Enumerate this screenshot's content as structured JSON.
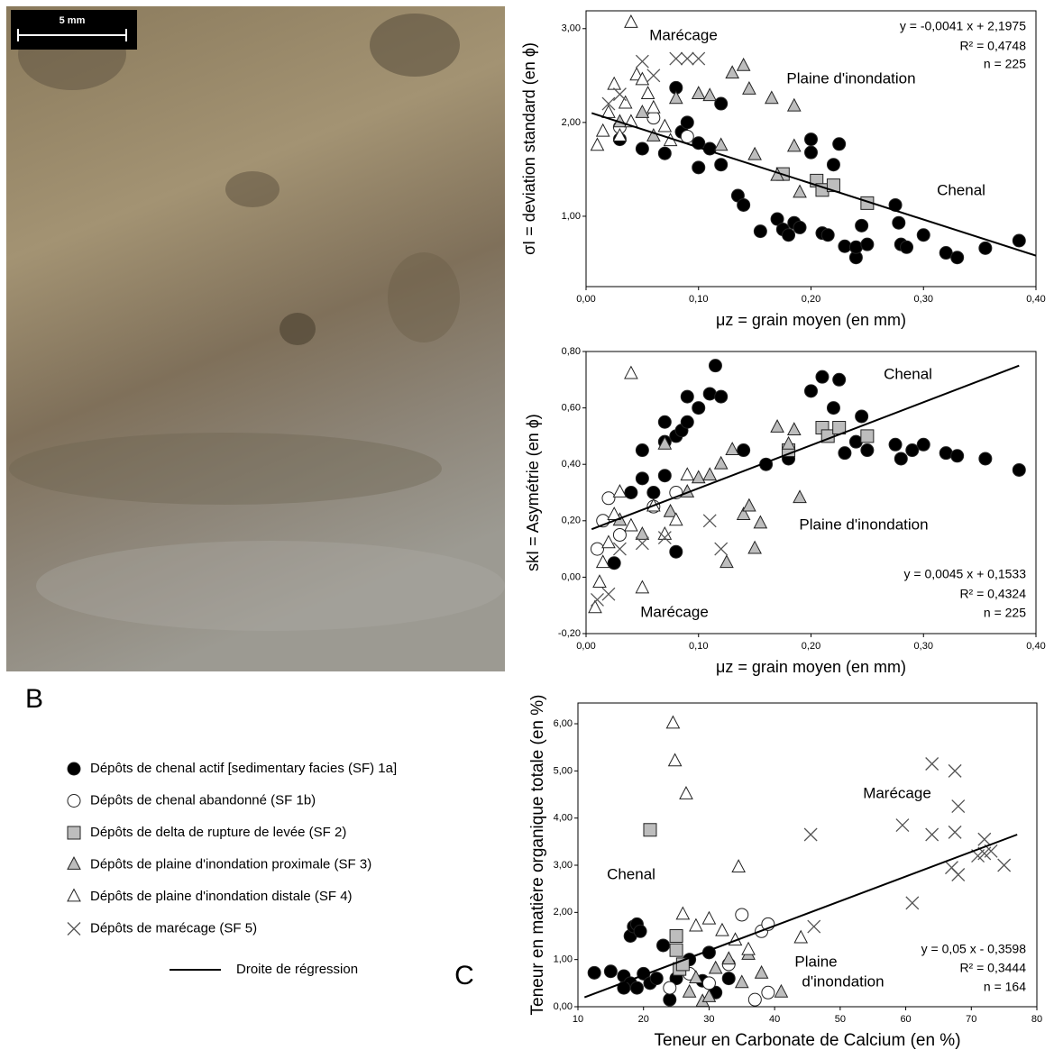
{
  "scale_bar": "5 mm",
  "panel_labels": [
    "B",
    "C"
  ],
  "chart_data": [
    {
      "type": "scatter",
      "xlabel": "μz = grain moyen (en mm)",
      "ylabel": "σI = deviation standard (en ϕ)",
      "xlim": [
        0,
        0.4
      ],
      "ylim": [
        0.25,
        3.19
      ],
      "xticks": [
        {
          "value": 0,
          "label": "0,00"
        },
        {
          "value": 0.1,
          "label": "0,10"
        },
        {
          "value": 0.2,
          "label": "0,20"
        },
        {
          "value": 0.3,
          "label": "0,30"
        },
        {
          "value": 0.4,
          "label": "0,40"
        }
      ],
      "yticks": [
        {
          "value": 1,
          "label": "1,00"
        },
        {
          "value": 2,
          "label": "2,00"
        },
        {
          "value": 3,
          "label": "3,00"
        }
      ],
      "annotations": [
        "Marécage",
        "Plaine d'inondation",
        "Chenal"
      ],
      "equation": [
        "y = -0,0041 x + 2,1975",
        "R² = 0,4748",
        "n = 225"
      ],
      "fit_name": "Droite de régression",
      "fit": {
        "x": [
          0.005,
          0.4
        ],
        "y": [
          2.1,
          0.58
        ]
      },
      "series": [
        {
          "name": "Dépôts de chenal actif  [sedimentary facies (SF) 1a]",
          "marker": "circle",
          "color": "#000000",
          "x": [
            0.03,
            0.05,
            0.07,
            0.08,
            0.085,
            0.09,
            0.1,
            0.1,
            0.12,
            0.12,
            0.11,
            0.135,
            0.14,
            0.155,
            0.17,
            0.175,
            0.18,
            0.185,
            0.19,
            0.2,
            0.2,
            0.21,
            0.215,
            0.22,
            0.225,
            0.23,
            0.24,
            0.24,
            0.245,
            0.25,
            0.275,
            0.278,
            0.28,
            0.285,
            0.3,
            0.32,
            0.33,
            0.355,
            0.385
          ],
          "y": [
            1.82,
            1.72,
            1.67,
            2.37,
            1.9,
            2.0,
            1.52,
            1.78,
            1.55,
            2.2,
            1.72,
            1.22,
            1.12,
            0.84,
            0.97,
            0.86,
            0.8,
            0.93,
            0.88,
            1.82,
            1.68,
            0.82,
            0.8,
            1.55,
            1.77,
            0.68,
            0.56,
            0.67,
            0.9,
            0.7,
            1.12,
            0.93,
            0.7,
            0.67,
            0.8,
            0.61,
            0.56,
            0.66,
            0.74
          ]
        },
        {
          "name": "Dépôts de chenal abandonné (SF 1b)",
          "marker": "circle",
          "color": "#ffffff",
          "x": [
            0.03,
            0.06,
            0.09
          ],
          "y": [
            1.95,
            2.05,
            1.85
          ]
        },
        {
          "name": "Dépôts de delta de rupture de levée (SF 2)",
          "marker": "square",
          "color": "#bdbdbd",
          "x": [
            0.175,
            0.205,
            0.21,
            0.22,
            0.25
          ],
          "y": [
            1.45,
            1.38,
            1.28,
            1.33,
            1.14
          ]
        },
        {
          "name": "Dépôts de plaine d'inondation proximale (SF 3)",
          "marker": "triangle",
          "color": "#bdbdbd",
          "x": [
            0.03,
            0.05,
            0.08,
            0.1,
            0.11,
            0.13,
            0.14,
            0.145,
            0.15,
            0.165,
            0.17,
            0.185,
            0.185,
            0.19,
            0.12,
            0.06
          ],
          "y": [
            2.0,
            2.1,
            2.25,
            2.3,
            2.28,
            2.52,
            2.6,
            2.35,
            1.65,
            2.25,
            1.43,
            2.17,
            1.74,
            1.25,
            1.75,
            1.85
          ]
        },
        {
          "name": "Dépôts de plaine d'inondation distale (SF 4)",
          "marker": "triangle",
          "color": "#ffffff",
          "x": [
            0.04,
            0.01,
            0.015,
            0.02,
            0.025,
            0.035,
            0.045,
            0.05,
            0.055,
            0.06,
            0.07,
            0.075,
            0.03,
            0.04
          ],
          "y": [
            3.06,
            1.75,
            1.9,
            2.1,
            2.4,
            2.2,
            2.5,
            2.45,
            2.3,
            2.15,
            1.95,
            1.8,
            1.85,
            2.0
          ]
        },
        {
          "name": "Dépôts de marécage (SF 5)",
          "marker": "cross",
          "color": "#555555",
          "x": [
            0.05,
            0.08,
            0.09,
            0.1,
            0.02,
            0.03,
            0.06
          ],
          "y": [
            2.65,
            2.68,
            2.68,
            2.68,
            2.2,
            2.3,
            2.5
          ]
        }
      ]
    },
    {
      "type": "scatter",
      "xlabel": "μz = grain moyen (en mm)",
      "ylabel": "skI = Asymétrie (en ϕ)",
      "xlim": [
        0,
        0.4
      ],
      "ylim": [
        -0.2,
        0.8
      ],
      "xticks": [
        {
          "value": 0,
          "label": "0,00"
        },
        {
          "value": 0.1,
          "label": "0,10"
        },
        {
          "value": 0.2,
          "label": "0,20"
        },
        {
          "value": 0.3,
          "label": "0,30"
        },
        {
          "value": 0.4,
          "label": "0,40"
        }
      ],
      "yticks": [
        {
          "value": -0.2,
          "label": "-0,20"
        },
        {
          "value": 0,
          "label": "0,00"
        },
        {
          "value": 0.2,
          "label": "0,20"
        },
        {
          "value": 0.4,
          "label": "0,40"
        },
        {
          "value": 0.6,
          "label": "0,60"
        },
        {
          "value": 0.8,
          "label": "0,80"
        }
      ],
      "annotations": [
        "Chenal",
        "Plaine d'inondation",
        "Marécage"
      ],
      "equation": [
        "y = 0,0045 x + 0,1533",
        "R² = 0,4324",
        "n = 225"
      ],
      "fit": {
        "x": [
          0.005,
          0.385
        ],
        "y": [
          0.17,
          0.75
        ]
      },
      "series": [
        {
          "marker": "circle",
          "color": "#000000",
          "x": [
            0.025,
            0.04,
            0.05,
            0.05,
            0.06,
            0.07,
            0.07,
            0.08,
            0.085,
            0.09,
            0.09,
            0.1,
            0.11,
            0.115,
            0.12,
            0.08,
            0.07,
            0.14,
            0.16,
            0.18,
            0.2,
            0.21,
            0.22,
            0.225,
            0.23,
            0.24,
            0.245,
            0.25,
            0.275,
            0.28,
            0.29,
            0.3,
            0.32,
            0.33,
            0.355,
            0.385
          ],
          "y": [
            0.05,
            0.3,
            0.45,
            0.35,
            0.3,
            0.48,
            0.55,
            0.5,
            0.52,
            0.55,
            0.64,
            0.6,
            0.65,
            0.75,
            0.64,
            0.09,
            0.36,
            0.45,
            0.4,
            0.42,
            0.66,
            0.71,
            0.6,
            0.7,
            0.44,
            0.48,
            0.57,
            0.45,
            0.47,
            0.42,
            0.45,
            0.47,
            0.44,
            0.43,
            0.42,
            0.38
          ]
        },
        {
          "marker": "circle",
          "color": "#ffffff",
          "x": [
            0.01,
            0.015,
            0.02,
            0.03,
            0.06,
            0.08
          ],
          "y": [
            0.1,
            0.2,
            0.28,
            0.15,
            0.25,
            0.3
          ]
        },
        {
          "marker": "square",
          "color": "#bdbdbd",
          "x": [
            0.18,
            0.21,
            0.215,
            0.225,
            0.25
          ],
          "y": [
            0.45,
            0.53,
            0.5,
            0.53,
            0.5
          ]
        },
        {
          "marker": "triangle",
          "color": "#bdbdbd",
          "x": [
            0.07,
            0.09,
            0.1,
            0.11,
            0.12,
            0.125,
            0.13,
            0.14,
            0.145,
            0.15,
            0.155,
            0.17,
            0.18,
            0.185,
            0.19,
            0.075,
            0.05,
            0.03
          ],
          "y": [
            0.47,
            0.3,
            0.35,
            0.36,
            0.4,
            0.05,
            0.45,
            0.22,
            0.25,
            0.1,
            0.19,
            0.53,
            0.47,
            0.52,
            0.28,
            0.23,
            0.15,
            0.2
          ]
        },
        {
          "marker": "triangle",
          "color": "#ffffff",
          "x": [
            0.04,
            0.008,
            0.012,
            0.015,
            0.02,
            0.025,
            0.03,
            0.04,
            0.05,
            0.06,
            0.07,
            0.08,
            0.09
          ],
          "y": [
            0.72,
            -0.11,
            -0.02,
            0.05,
            0.12,
            0.22,
            0.3,
            0.18,
            -0.04,
            0.25,
            0.15,
            0.2,
            0.36
          ]
        },
        {
          "marker": "cross",
          "color": "#555555",
          "x": [
            0.01,
            0.02,
            0.03,
            0.05,
            0.07,
            0.11,
            0.12
          ],
          "y": [
            -0.08,
            -0.06,
            0.1,
            0.12,
            0.14,
            0.2,
            0.1
          ]
        }
      ]
    },
    {
      "type": "scatter",
      "xlabel": "Teneur en Carbonate de Calcium (en %)",
      "ylabel": "Teneur en matière organique totale (en %)",
      "xlim": [
        10,
        80
      ],
      "ylim": [
        0,
        6.44
      ],
      "xticks": [
        10,
        20,
        30,
        40,
        50,
        60,
        70,
        80
      ],
      "yticks": [
        {
          "value": 0,
          "label": "0,00"
        },
        {
          "value": 1,
          "label": "1,00"
        },
        {
          "value": 2,
          "label": "2,00"
        },
        {
          "value": 3,
          "label": "3,00"
        },
        {
          "value": 4,
          "label": "4,00"
        },
        {
          "value": 5,
          "label": "5,00"
        },
        {
          "value": 6,
          "label": "6,00"
        }
      ],
      "annotations": [
        "Marécage",
        "Chenal",
        "Plaine",
        "d'inondation"
      ],
      "equation": [
        "y = 0,05 x - 0,3598",
        "R² = 0,3444",
        "n = 164"
      ],
      "fit": {
        "x": [
          11,
          77
        ],
        "y": [
          0.2,
          3.65
        ]
      },
      "series": [
        {
          "marker": "circle",
          "color": "#000000",
          "x": [
            12.5,
            15,
            17,
            18,
            18.5,
            19,
            19.5,
            18,
            19,
            20,
            21,
            22,
            23,
            24,
            25,
            27,
            29,
            30,
            31,
            33,
            17
          ],
          "y": [
            0.72,
            0.75,
            0.65,
            1.5,
            1.7,
            1.75,
            1.6,
            0.5,
            0.4,
            0.7,
            0.5,
            0.6,
            1.3,
            0.15,
            0.6,
            1.0,
            0.55,
            1.15,
            0.3,
            0.6,
            0.4
          ]
        },
        {
          "marker": "circle",
          "color": "#ffffff",
          "x": [
            24,
            27,
            30,
            33,
            35,
            37,
            38,
            39,
            39
          ],
          "y": [
            0.4,
            0.7,
            0.5,
            0.9,
            1.95,
            0.15,
            1.6,
            1.75,
            0.3
          ]
        },
        {
          "marker": "square",
          "color": "#bdbdbd",
          "x": [
            21,
            25,
            25,
            25.5,
            26
          ],
          "y": [
            3.75,
            1.5,
            1.2,
            0.8,
            0.9
          ]
        },
        {
          "marker": "triangle",
          "color": "#bdbdbd",
          "x": [
            27,
            28,
            29,
            30,
            31,
            33,
            35,
            36,
            38,
            41
          ],
          "y": [
            0.3,
            0.6,
            0.1,
            0.2,
            0.8,
            1.0,
            0.5,
            1.1,
            0.7,
            0.3
          ]
        },
        {
          "marker": "triangle",
          "color": "#ffffff",
          "x": [
            24.5,
            24.8,
            26.5,
            34.5,
            26,
            28,
            30,
            32,
            34,
            36,
            44
          ],
          "y": [
            6.0,
            5.2,
            4.5,
            2.95,
            1.95,
            1.7,
            1.85,
            1.6,
            1.4,
            1.2,
            1.45
          ]
        },
        {
          "marker": "cross",
          "color": "#555555",
          "x": [
            45.5,
            46,
            59.5,
            61,
            64,
            64,
            67.5,
            67.5,
            68,
            67,
            68,
            72,
            72,
            73,
            75,
            71
          ],
          "y": [
            3.65,
            1.7,
            3.85,
            2.2,
            5.15,
            3.65,
            5.0,
            3.7,
            4.25,
            2.95,
            2.8,
            3.55,
            3.25,
            3.3,
            3.0,
            3.2
          ]
        }
      ]
    }
  ]
}
